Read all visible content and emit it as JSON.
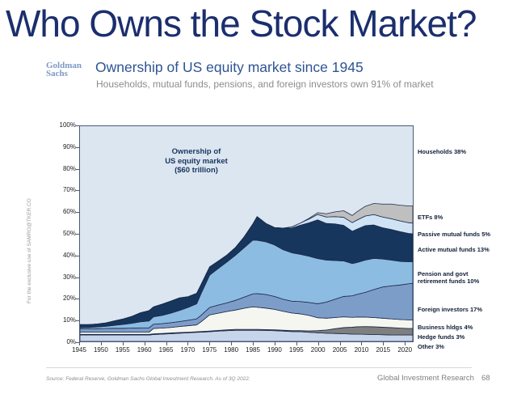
{
  "slide": {
    "title": "Who Owns the Stock Market?",
    "watermark": "For the exclusive use of SAMRO@TKER.CO",
    "source_note": "Source: Federal Reserve, Goldman Sachs Global Investment Research. As of 3Q 2022.",
    "footer_right": "Global Investment Research",
    "page_number": "68"
  },
  "header": {
    "logo_line1": "Goldman",
    "logo_line2": "Sachs",
    "title": "Ownership of US equity market since 1945",
    "subtitle": "Households, mutual funds, pensions, and foreign investors own 91% of market"
  },
  "chart_data": {
    "type": "area",
    "stacked": true,
    "annotation": "Ownership of\nUS equity market\n($60 trillion)",
    "xlim": [
      1945,
      2022
    ],
    "ylim": [
      0,
      100
    ],
    "grid": false,
    "plot_background_color": "#dce6f1",
    "outline_color": "#1c2b49",
    "x_tick_years": [
      1945,
      1950,
      1955,
      1960,
      1965,
      1970,
      1975,
      1980,
      1985,
      1990,
      1995,
      2000,
      2005,
      2010,
      2015,
      2020
    ],
    "y_ticks": [
      "0%",
      "10%",
      "20%",
      "30%",
      "40%",
      "50%",
      "60%",
      "70%",
      "80%",
      "90%",
      "100%"
    ],
    "background_series": {
      "name": "households",
      "label": "Households 38%",
      "color": "#dce6f1",
      "value_2022": 38
    },
    "x": [
      1945,
      1947,
      1949,
      1951,
      1953,
      1955,
      1957,
      1959,
      1961,
      1962,
      1964,
      1966,
      1968,
      1970,
      1972,
      1973,
      1975,
      1977,
      1979,
      1981,
      1983,
      1985,
      1986,
      1988,
      1990,
      1992,
      1994,
      1996,
      1998,
      2000,
      2002,
      2004,
      2006,
      2008,
      2009,
      2011,
      2013,
      2015,
      2017,
      2019,
      2021,
      2022
    ],
    "series": [
      {
        "name": "other",
        "label": "Other 3%",
        "color": "#c7d5ea",
        "values": [
          3,
          3,
          3,
          3,
          3,
          3,
          3,
          3,
          3,
          3.2,
          3.4,
          3.6,
          3.8,
          4,
          4.2,
          4.3,
          4.5,
          4.8,
          5,
          5.2,
          5.2,
          5.2,
          5.2,
          5.1,
          5,
          4.8,
          4.6,
          4.5,
          4.2,
          4,
          3.8,
          3.7,
          3.6,
          3.4,
          3.4,
          3.3,
          3.2,
          3.1,
          3,
          3,
          3,
          3
        ]
      },
      {
        "name": "hedge-funds",
        "label": "Hedge funds 3%",
        "color": "#7f7f7f",
        "values": [
          0.3,
          0.3,
          0.3,
          0.3,
          0.3,
          0.3,
          0.3,
          0.3,
          0.3,
          0.3,
          0.3,
          0.3,
          0.3,
          0.3,
          0.3,
          0.3,
          0.3,
          0.3,
          0.4,
          0.4,
          0.4,
          0.4,
          0.4,
          0.4,
          0.4,
          0.4,
          0.4,
          0.5,
          0.7,
          1,
          1.5,
          2.2,
          2.8,
          3.2,
          3.4,
          3.6,
          3.6,
          3.5,
          3.4,
          3.2,
          3,
          3
        ]
      },
      {
        "name": "business-holdings",
        "label": "Business hldgs 4%",
        "color": "#f6f6f1",
        "values": [
          1,
          1,
          1,
          1,
          1,
          1,
          1,
          1,
          1,
          2.5,
          2.5,
          2.6,
          2.8,
          3,
          3.2,
          4.5,
          7.5,
          8,
          8.5,
          9,
          9.8,
          10.5,
          10.3,
          10,
          9.5,
          8.8,
          8.2,
          7.8,
          7.2,
          6,
          5.5,
          5.2,
          5,
          4.6,
          4.5,
          4.4,
          4.3,
          4.2,
          4.1,
          4,
          4,
          4
        ]
      },
      {
        "name": "foreign-investors",
        "label": "Foreign investors 17%",
        "color": "#7d9dc9",
        "values": [
          1.5,
          1.5,
          1.6,
          1.7,
          1.8,
          1.8,
          1.9,
          2,
          2,
          2,
          2.1,
          2.2,
          2.3,
          2.5,
          2.8,
          3,
          3.5,
          3.8,
          4,
          4.5,
          5.2,
          6,
          6.3,
          6.3,
          6,
          5.6,
          5.5,
          5.7,
          6,
          6.5,
          7.5,
          8.5,
          9.5,
          10,
          10.5,
          11.5,
          13,
          14.5,
          15.3,
          16,
          16.8,
          17
        ]
      },
      {
        "name": "pension-govt-retirement",
        "label": "Pension and govt retirement funds 10%",
        "color": "#8dbce3",
        "values": [
          0.5,
          0.6,
          0.8,
          1,
          1.4,
          1.8,
          2.2,
          2.8,
          3.2,
          3.4,
          3.8,
          4.4,
          5.2,
          6,
          7,
          10,
          15,
          17,
          19,
          21,
          23,
          25,
          24.8,
          24.5,
          24,
          23,
          22.5,
          22,
          21.5,
          21,
          19.5,
          18,
          16.5,
          15,
          14.8,
          15,
          14.5,
          13,
          12,
          11,
          10.2,
          10
        ]
      },
      {
        "name": "active-mutual-funds",
        "label": "Active mutual funds 13%",
        "color": "#17365d",
        "values": [
          1.5,
          1.4,
          1.4,
          1.6,
          2,
          2.5,
          3.2,
          4.2,
          4.8,
          4.6,
          5.2,
          5.6,
          5.8,
          5,
          4.8,
          4.2,
          3.8,
          3.4,
          3.2,
          3.6,
          5,
          7.5,
          11,
          8.5,
          8,
          10,
          11.5,
          13.5,
          15.5,
          18,
          17,
          17,
          16.5,
          15,
          15.5,
          16,
          15.5,
          14.5,
          14.2,
          13.8,
          13.2,
          13
        ]
      },
      {
        "name": "passive-mutual-funds",
        "label": "Passive mutual funds 5%",
        "color": "#cfe3f5",
        "values": [
          0,
          0,
          0,
          0,
          0,
          0,
          0,
          0,
          0,
          0,
          0,
          0,
          0,
          0,
          0,
          0,
          0,
          0,
          0,
          0,
          0,
          0,
          0,
          0,
          0,
          0,
          0.5,
          1,
          1.8,
          2.5,
          3,
          3.4,
          3.8,
          4,
          4.2,
          4.5,
          4.8,
          5,
          5,
          5,
          5,
          5
        ]
      },
      {
        "name": "etfs",
        "label": "ETFs 8%",
        "color": "#bfbfbf",
        "values": [
          0,
          0,
          0,
          0,
          0,
          0,
          0,
          0,
          0,
          0,
          0,
          0,
          0,
          0,
          0,
          0,
          0,
          0,
          0,
          0,
          0,
          0,
          0,
          0,
          0,
          0,
          0,
          0,
          0.3,
          0.8,
          1.5,
          2.2,
          3,
          3.3,
          3.8,
          4.5,
          5.2,
          6,
          6.8,
          7.3,
          7.8,
          8
        ]
      }
    ]
  }
}
